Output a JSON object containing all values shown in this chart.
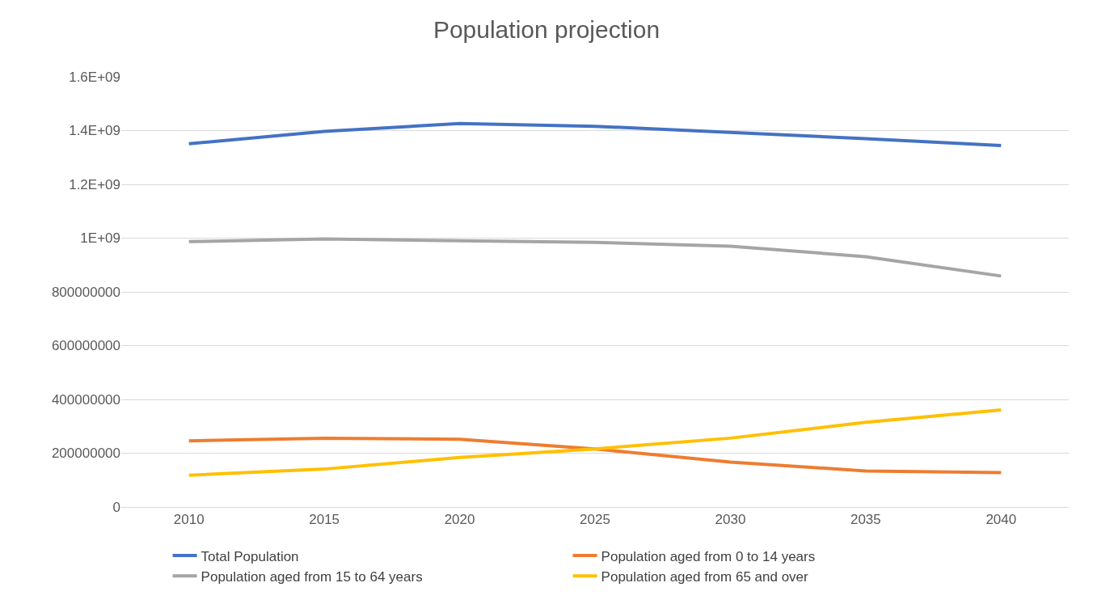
{
  "chart_data": {
    "type": "line",
    "title": "Population projection",
    "categories": [
      "2010",
      "2015",
      "2020",
      "2025",
      "2030",
      "2035",
      "2040"
    ],
    "series": [
      {
        "name": "Total Population",
        "color": "#4472c4",
        "values": [
          1351000000,
          1397000000,
          1426000000,
          1416000000,
          1393000000,
          1370000000,
          1344000000
        ]
      },
      {
        "name": "Population aged from 0 to 14 years",
        "color": "#ed7d31",
        "values": [
          246000000,
          256000000,
          252000000,
          216000000,
          167000000,
          134000000,
          128000000
        ]
      },
      {
        "name": "Population aged from 15 to 64 years",
        "color": "#a5a5a5",
        "values": [
          987000000,
          997000000,
          990000000,
          984000000,
          970000000,
          931000000,
          859000000
        ]
      },
      {
        "name": "Population aged from 65 and over",
        "color": "#ffc000",
        "values": [
          118000000,
          141000000,
          184000000,
          216000000,
          256000000,
          315000000,
          361000000
        ]
      }
    ],
    "ylim": [
      0,
      1600000000
    ],
    "yticks": [
      0,
      {
        "value": 200000000,
        "label": "200000000"
      },
      {
        "value": 400000000,
        "label": "400000000"
      },
      {
        "value": 600000000,
        "label": "600000000"
      },
      {
        "value": 800000000,
        "label": "800000000"
      },
      {
        "value": 1000000000,
        "label": "1E+09"
      },
      {
        "value": 1200000000,
        "label": "1.2E+09"
      },
      {
        "value": 1400000000,
        "label": "1.4E+09"
      },
      {
        "value": 1600000000,
        "label": "1.6E+09"
      }
    ],
    "grid": "y",
    "legend": "bottom",
    "marker": "none",
    "line_style": "solid"
  }
}
